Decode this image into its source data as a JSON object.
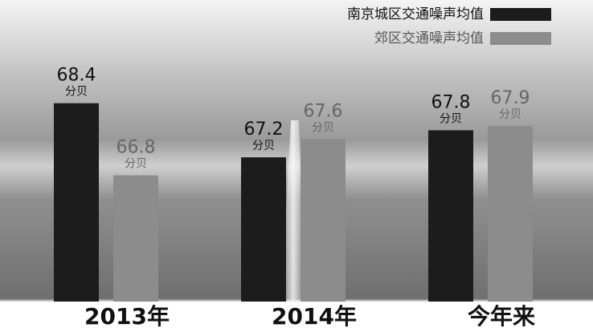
{
  "chart_data": {
    "type": "bar",
    "categories": [
      "2013年",
      "2014年",
      "今年来"
    ],
    "unit": "分贝",
    "series": [
      {
        "name": "南京城区交通噪声均值",
        "color": "#1c1c1c",
        "values": [
          68.4,
          67.2,
          67.8
        ]
      },
      {
        "name": "郊区交通噪声均值",
        "color": "#8c8c8c",
        "values": [
          66.8,
          67.6,
          67.9
        ]
      }
    ],
    "ylim": [
      64,
      69
    ]
  }
}
